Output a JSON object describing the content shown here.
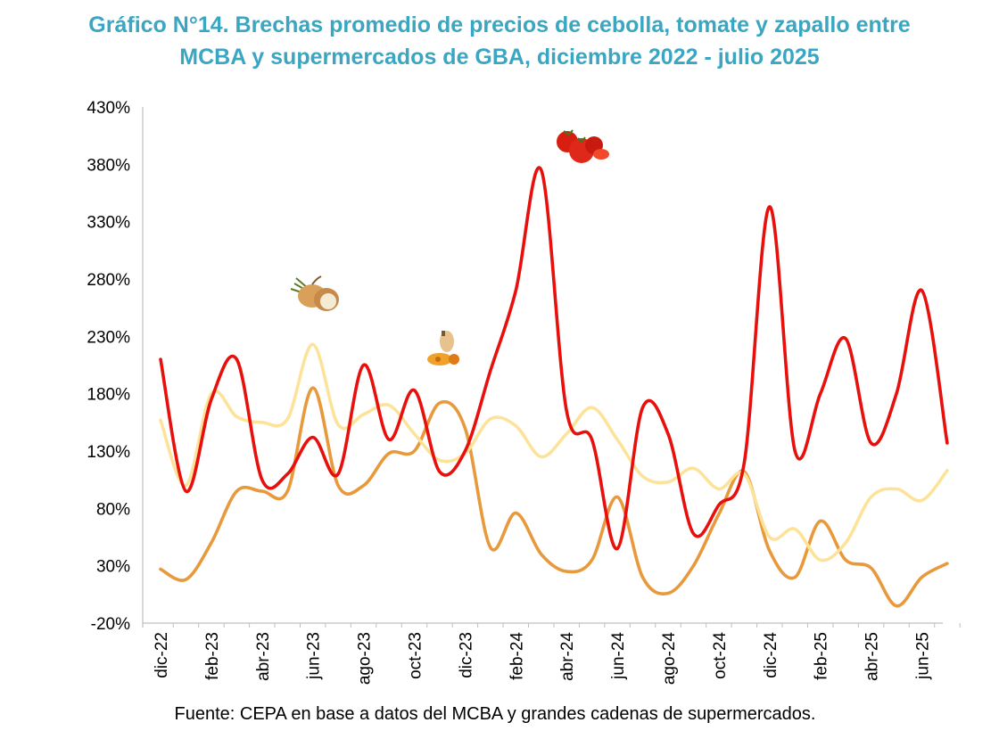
{
  "title": {
    "line1": "Gráfico N°14. Brechas promedio de precios de cebolla, tomate y zapallo entre",
    "line2": "MCBA y supermercados de GBA, diciembre 2022 - julio 2025"
  },
  "source": "Fuente: CEPA en base a datos del MCBA y grandes cadenas de supermercados.",
  "chart_data": {
    "type": "line",
    "title": "Gráfico N°14. Brechas promedio de precios de cebolla, tomate y zapallo entre MCBA y supermercados de GBA, diciembre 2022 - julio 2025",
    "xlabel": "",
    "ylabel": "",
    "ylim": [
      -20,
      430
    ],
    "y_ticks": [
      "430%",
      "380%",
      "330%",
      "280%",
      "230%",
      "180%",
      "130%",
      "80%",
      "30%",
      "-20%"
    ],
    "y_tick_values": [
      430,
      380,
      330,
      280,
      230,
      180,
      130,
      80,
      30,
      -20
    ],
    "x": [
      "dic-22",
      "ene-23",
      "feb-23",
      "mar-23",
      "abr-23",
      "may-23",
      "jun-23",
      "jul-23",
      "ago-23",
      "sep-23",
      "oct-23",
      "nov-23",
      "dic-23",
      "ene-24",
      "feb-24",
      "mar-24",
      "abr-24",
      "may-24",
      "jun-24",
      "jul-24",
      "ago-24",
      "sep-24",
      "oct-24",
      "nov-24",
      "dic-24",
      "ene-25",
      "feb-25",
      "mar-25",
      "abr-25",
      "may-25",
      "jun-25",
      "jul-25"
    ],
    "x_tick_labels": [
      "dic-22",
      "feb-23",
      "abr-23",
      "jun-23",
      "ago-23",
      "oct-23",
      "dic-23",
      "feb-24",
      "abr-24",
      "jun-24",
      "ago-24",
      "oct-24",
      "dic-24",
      "feb-25",
      "abr-25",
      "jun-25"
    ],
    "grid": false,
    "legend": "none",
    "series": [
      {
        "color": "#e8100c",
        "values": [
          210,
          95,
          175,
          210,
          105,
          110,
          142,
          110,
          205,
          140,
          183,
          112,
          130,
          200,
          270,
          375,
          165,
          140,
          45,
          168,
          145,
          58,
          83,
          120,
          343,
          130,
          180,
          228,
          137,
          180,
          270,
          137
        ]
      },
      {
        "color": "#fde39a",
        "values": [
          157,
          100,
          180,
          160,
          155,
          158,
          223,
          153,
          162,
          170,
          145,
          122,
          128,
          158,
          152,
          125,
          145,
          168,
          140,
          108,
          103,
          115,
          97,
          110,
          55,
          62,
          35,
          50,
          90,
          97,
          87,
          113
        ]
      },
      {
        "color": "#e8993b",
        "values": [
          27,
          18,
          50,
          95,
          95,
          95,
          185,
          100,
          100,
          128,
          130,
          172,
          150,
          46,
          76,
          40,
          25,
          35,
          90,
          20,
          6,
          30,
          75,
          112,
          43,
          20,
          69,
          35,
          28,
          -5,
          20,
          32
        ]
      }
    ],
    "decorations": [
      "onion-image",
      "squash-image",
      "tomato-image"
    ]
  }
}
